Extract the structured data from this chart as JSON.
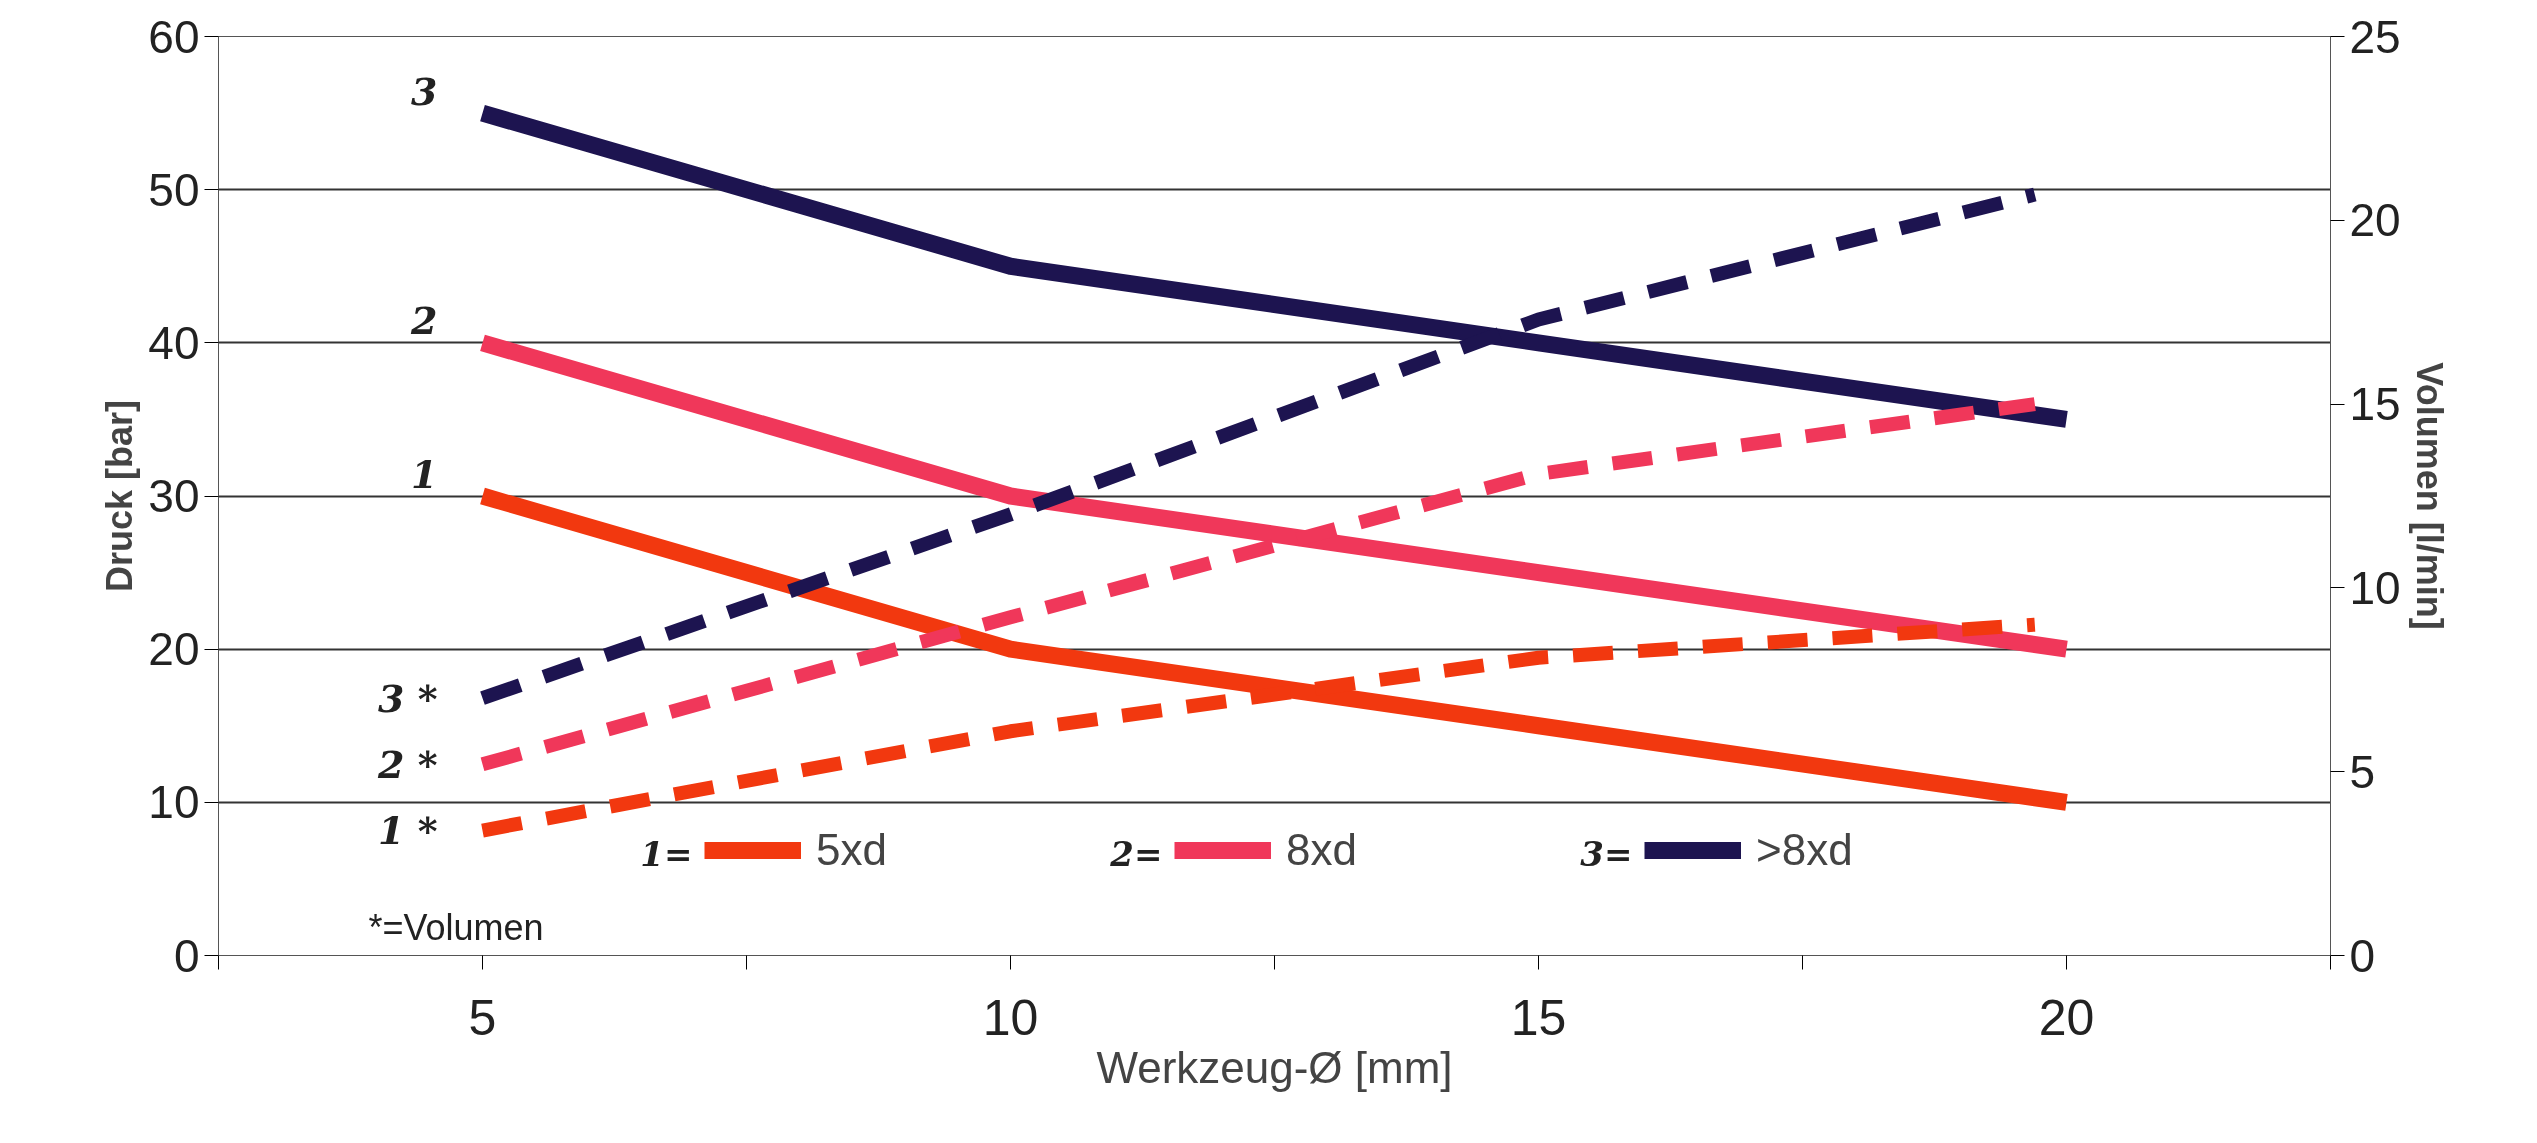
{
  "chart_data": {
    "type": "line",
    "xlabel": "Werkzeug-Ø [mm]",
    "ylabel": "Druck [bar]",
    "y2label": "Volumen [l/min]",
    "x": [
      5,
      10,
      15,
      20
    ],
    "series": [
      {
        "name": "5xd",
        "color": "#f2380f",
        "values": [
          30,
          20,
          15,
          10
        ],
        "line_style": "solid"
      },
      {
        "name": "8xd",
        "color": "#f0375a",
        "values": [
          40,
          30,
          25,
          20
        ],
        "line_style": "solid"
      },
      {
        "name": ">8xd",
        "color": "#1d1450",
        "values": [
          55,
          45,
          40,
          35
        ],
        "line_style": "solid"
      },
      {
        "color": "#f2380f",
        "x": [
          5,
          10,
          15,
          19.7
        ],
        "values": [
          3.4,
          6.1,
          8.1,
          9.0
        ],
        "axis": "y2",
        "line_style": "dashed"
      },
      {
        "color": "#f0375a",
        "x": [
          5,
          10,
          15,
          19.7
        ],
        "values": [
          5.2,
          9.2,
          13.1,
          15.0
        ],
        "axis": "y2",
        "line_style": "dashed"
      },
      {
        "color": "#1d1450",
        "x": [
          5,
          10,
          15,
          19.7
        ],
        "values": [
          7.0,
          12.0,
          17.3,
          20.7
        ],
        "axis": "y2",
        "line_style": "dashed"
      }
    ],
    "xlim": [
      2.5,
      22.5
    ],
    "xticks": [
      {
        "value": 2.5,
        "label": null
      },
      5,
      {
        "value": 7.5,
        "label": null
      },
      10,
      {
        "value": 12.5,
        "label": null
      },
      15,
      {
        "value": 17.5,
        "label": null
      },
      20,
      {
        "value": 22.5,
        "label": null
      }
    ],
    "ylim": [
      0,
      60
    ],
    "yticks": [
      0,
      10,
      20,
      30,
      40,
      50,
      60
    ],
    "y2lim": [
      0,
      25
    ],
    "y2ticks": [
      0,
      5,
      10,
      15,
      20,
      25
    ],
    "grid": "y",
    "legend": "bottom",
    "marker": "none",
    "annotations": [
      "*=Volumen",
      "1=",
      "2=",
      "3=",
      "1",
      "2",
      "3",
      "1 *",
      "2 *",
      "3 *"
    ]
  }
}
